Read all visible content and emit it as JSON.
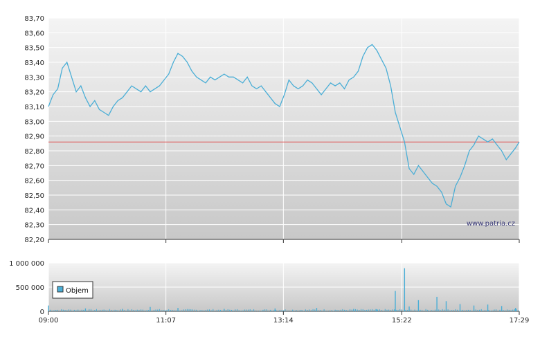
{
  "watermark": "www.patria.cz",
  "colors": {
    "line": "#4aaed6",
    "reference_line": "#e05050",
    "grid": "#ffffff",
    "plot_bg_top": "#f4f4f4",
    "plot_bg_bottom": "#c8c8c8",
    "volume_bar": "#4aaed6"
  },
  "chart_data": [
    {
      "type": "line",
      "name": "price",
      "grid": true,
      "ylim": [
        82.2,
        83.7
      ],
      "y_ticks": [
        "83,70",
        "83,60",
        "83,50",
        "83,40",
        "83,30",
        "83,20",
        "83,10",
        "83,00",
        "82,90",
        "82,80",
        "82,70",
        "82,60",
        "82,50",
        "82,40",
        "82,30",
        "82,20"
      ],
      "x_ticks": [
        "09:00",
        "11:07",
        "13:14",
        "15:22",
        "17:29"
      ],
      "reference_value": 82.86,
      "points": [
        [
          "09:00",
          83.1
        ],
        [
          "09:05",
          83.18
        ],
        [
          "09:10",
          83.22
        ],
        [
          "09:15",
          83.36
        ],
        [
          "09:20",
          83.4
        ],
        [
          "09:25",
          83.3
        ],
        [
          "09:30",
          83.2
        ],
        [
          "09:35",
          83.24
        ],
        [
          "09:40",
          83.16
        ],
        [
          "09:45",
          83.1
        ],
        [
          "09:50",
          83.14
        ],
        [
          "09:55",
          83.08
        ],
        [
          "10:00",
          83.06
        ],
        [
          "10:05",
          83.04
        ],
        [
          "10:10",
          83.1
        ],
        [
          "10:15",
          83.14
        ],
        [
          "10:20",
          83.16
        ],
        [
          "10:25",
          83.2
        ],
        [
          "10:30",
          83.24
        ],
        [
          "10:35",
          83.22
        ],
        [
          "10:40",
          83.2
        ],
        [
          "10:45",
          83.24
        ],
        [
          "10:50",
          83.2
        ],
        [
          "10:55",
          83.22
        ],
        [
          "11:00",
          83.24
        ],
        [
          "11:05",
          83.28
        ],
        [
          "11:10",
          83.32
        ],
        [
          "11:15",
          83.4
        ],
        [
          "11:20",
          83.46
        ],
        [
          "11:25",
          83.44
        ],
        [
          "11:30",
          83.4
        ],
        [
          "11:35",
          83.34
        ],
        [
          "11:40",
          83.3
        ],
        [
          "11:45",
          83.28
        ],
        [
          "11:50",
          83.26
        ],
        [
          "11:55",
          83.3
        ],
        [
          "12:00",
          83.28
        ],
        [
          "12:05",
          83.3
        ],
        [
          "12:10",
          83.32
        ],
        [
          "12:15",
          83.3
        ],
        [
          "12:20",
          83.3
        ],
        [
          "12:25",
          83.28
        ],
        [
          "12:30",
          83.26
        ],
        [
          "12:35",
          83.3
        ],
        [
          "12:40",
          83.24
        ],
        [
          "12:45",
          83.22
        ],
        [
          "12:50",
          83.24
        ],
        [
          "12:55",
          83.2
        ],
        [
          "13:00",
          83.16
        ],
        [
          "13:05",
          83.12
        ],
        [
          "13:10",
          83.1
        ],
        [
          "13:15",
          83.18
        ],
        [
          "13:20",
          83.28
        ],
        [
          "13:25",
          83.24
        ],
        [
          "13:30",
          83.22
        ],
        [
          "13:35",
          83.24
        ],
        [
          "13:40",
          83.28
        ],
        [
          "13:45",
          83.26
        ],
        [
          "13:50",
          83.22
        ],
        [
          "13:55",
          83.18
        ],
        [
          "14:00",
          83.22
        ],
        [
          "14:05",
          83.26
        ],
        [
          "14:10",
          83.24
        ],
        [
          "14:15",
          83.26
        ],
        [
          "14:20",
          83.22
        ],
        [
          "14:25",
          83.28
        ],
        [
          "14:30",
          83.3
        ],
        [
          "14:35",
          83.34
        ],
        [
          "14:40",
          83.44
        ],
        [
          "14:45",
          83.5
        ],
        [
          "14:50",
          83.52
        ],
        [
          "14:55",
          83.48
        ],
        [
          "15:00",
          83.42
        ],
        [
          "15:05",
          83.36
        ],
        [
          "15:10",
          83.24
        ],
        [
          "15:15",
          83.06
        ],
        [
          "15:20",
          82.96
        ],
        [
          "15:25",
          82.86
        ],
        [
          "15:30",
          82.68
        ],
        [
          "15:35",
          82.64
        ],
        [
          "15:40",
          82.7
        ],
        [
          "15:45",
          82.66
        ],
        [
          "15:50",
          82.62
        ],
        [
          "15:55",
          82.58
        ],
        [
          "16:00",
          82.56
        ],
        [
          "16:05",
          82.52
        ],
        [
          "16:10",
          82.44
        ],
        [
          "16:15",
          82.42
        ],
        [
          "16:20",
          82.56
        ],
        [
          "16:25",
          82.62
        ],
        [
          "16:30",
          82.7
        ],
        [
          "16:35",
          82.8
        ],
        [
          "16:40",
          82.84
        ],
        [
          "16:45",
          82.9
        ],
        [
          "16:50",
          82.88
        ],
        [
          "16:55",
          82.86
        ],
        [
          "17:00",
          82.88
        ],
        [
          "17:05",
          82.84
        ],
        [
          "17:10",
          82.8
        ],
        [
          "17:15",
          82.74
        ],
        [
          "17:20",
          82.78
        ],
        [
          "17:25",
          82.82
        ],
        [
          "17:29",
          82.86
        ]
      ]
    },
    {
      "type": "bar",
      "name": "Objem",
      "grid": true,
      "ylim": [
        0,
        1000000
      ],
      "y_ticks": [
        "1 000 000",
        "500 000",
        "0"
      ],
      "x_ticks": [
        "09:00",
        "11:07",
        "13:14",
        "15:22",
        "17:29"
      ],
      "base_level": 40000,
      "spikes": [
        [
          "09:00",
          120000
        ],
        [
          "09:40",
          60000
        ],
        [
          "10:20",
          50000
        ],
        [
          "10:50",
          90000
        ],
        [
          "11:20",
          70000
        ],
        [
          "12:10",
          50000
        ],
        [
          "13:05",
          60000
        ],
        [
          "13:50",
          70000
        ],
        [
          "14:30",
          50000
        ],
        [
          "14:55",
          40000
        ],
        [
          "15:15",
          420000
        ],
        [
          "15:25",
          890000
        ],
        [
          "15:30",
          100000
        ],
        [
          "15:40",
          230000
        ],
        [
          "16:00",
          300000
        ],
        [
          "16:10",
          210000
        ],
        [
          "16:25",
          150000
        ],
        [
          "16:40",
          120000
        ],
        [
          "16:55",
          140000
        ],
        [
          "17:10",
          110000
        ],
        [
          "17:25",
          70000
        ]
      ],
      "legend": "Objem",
      "legend_position": "left"
    }
  ]
}
